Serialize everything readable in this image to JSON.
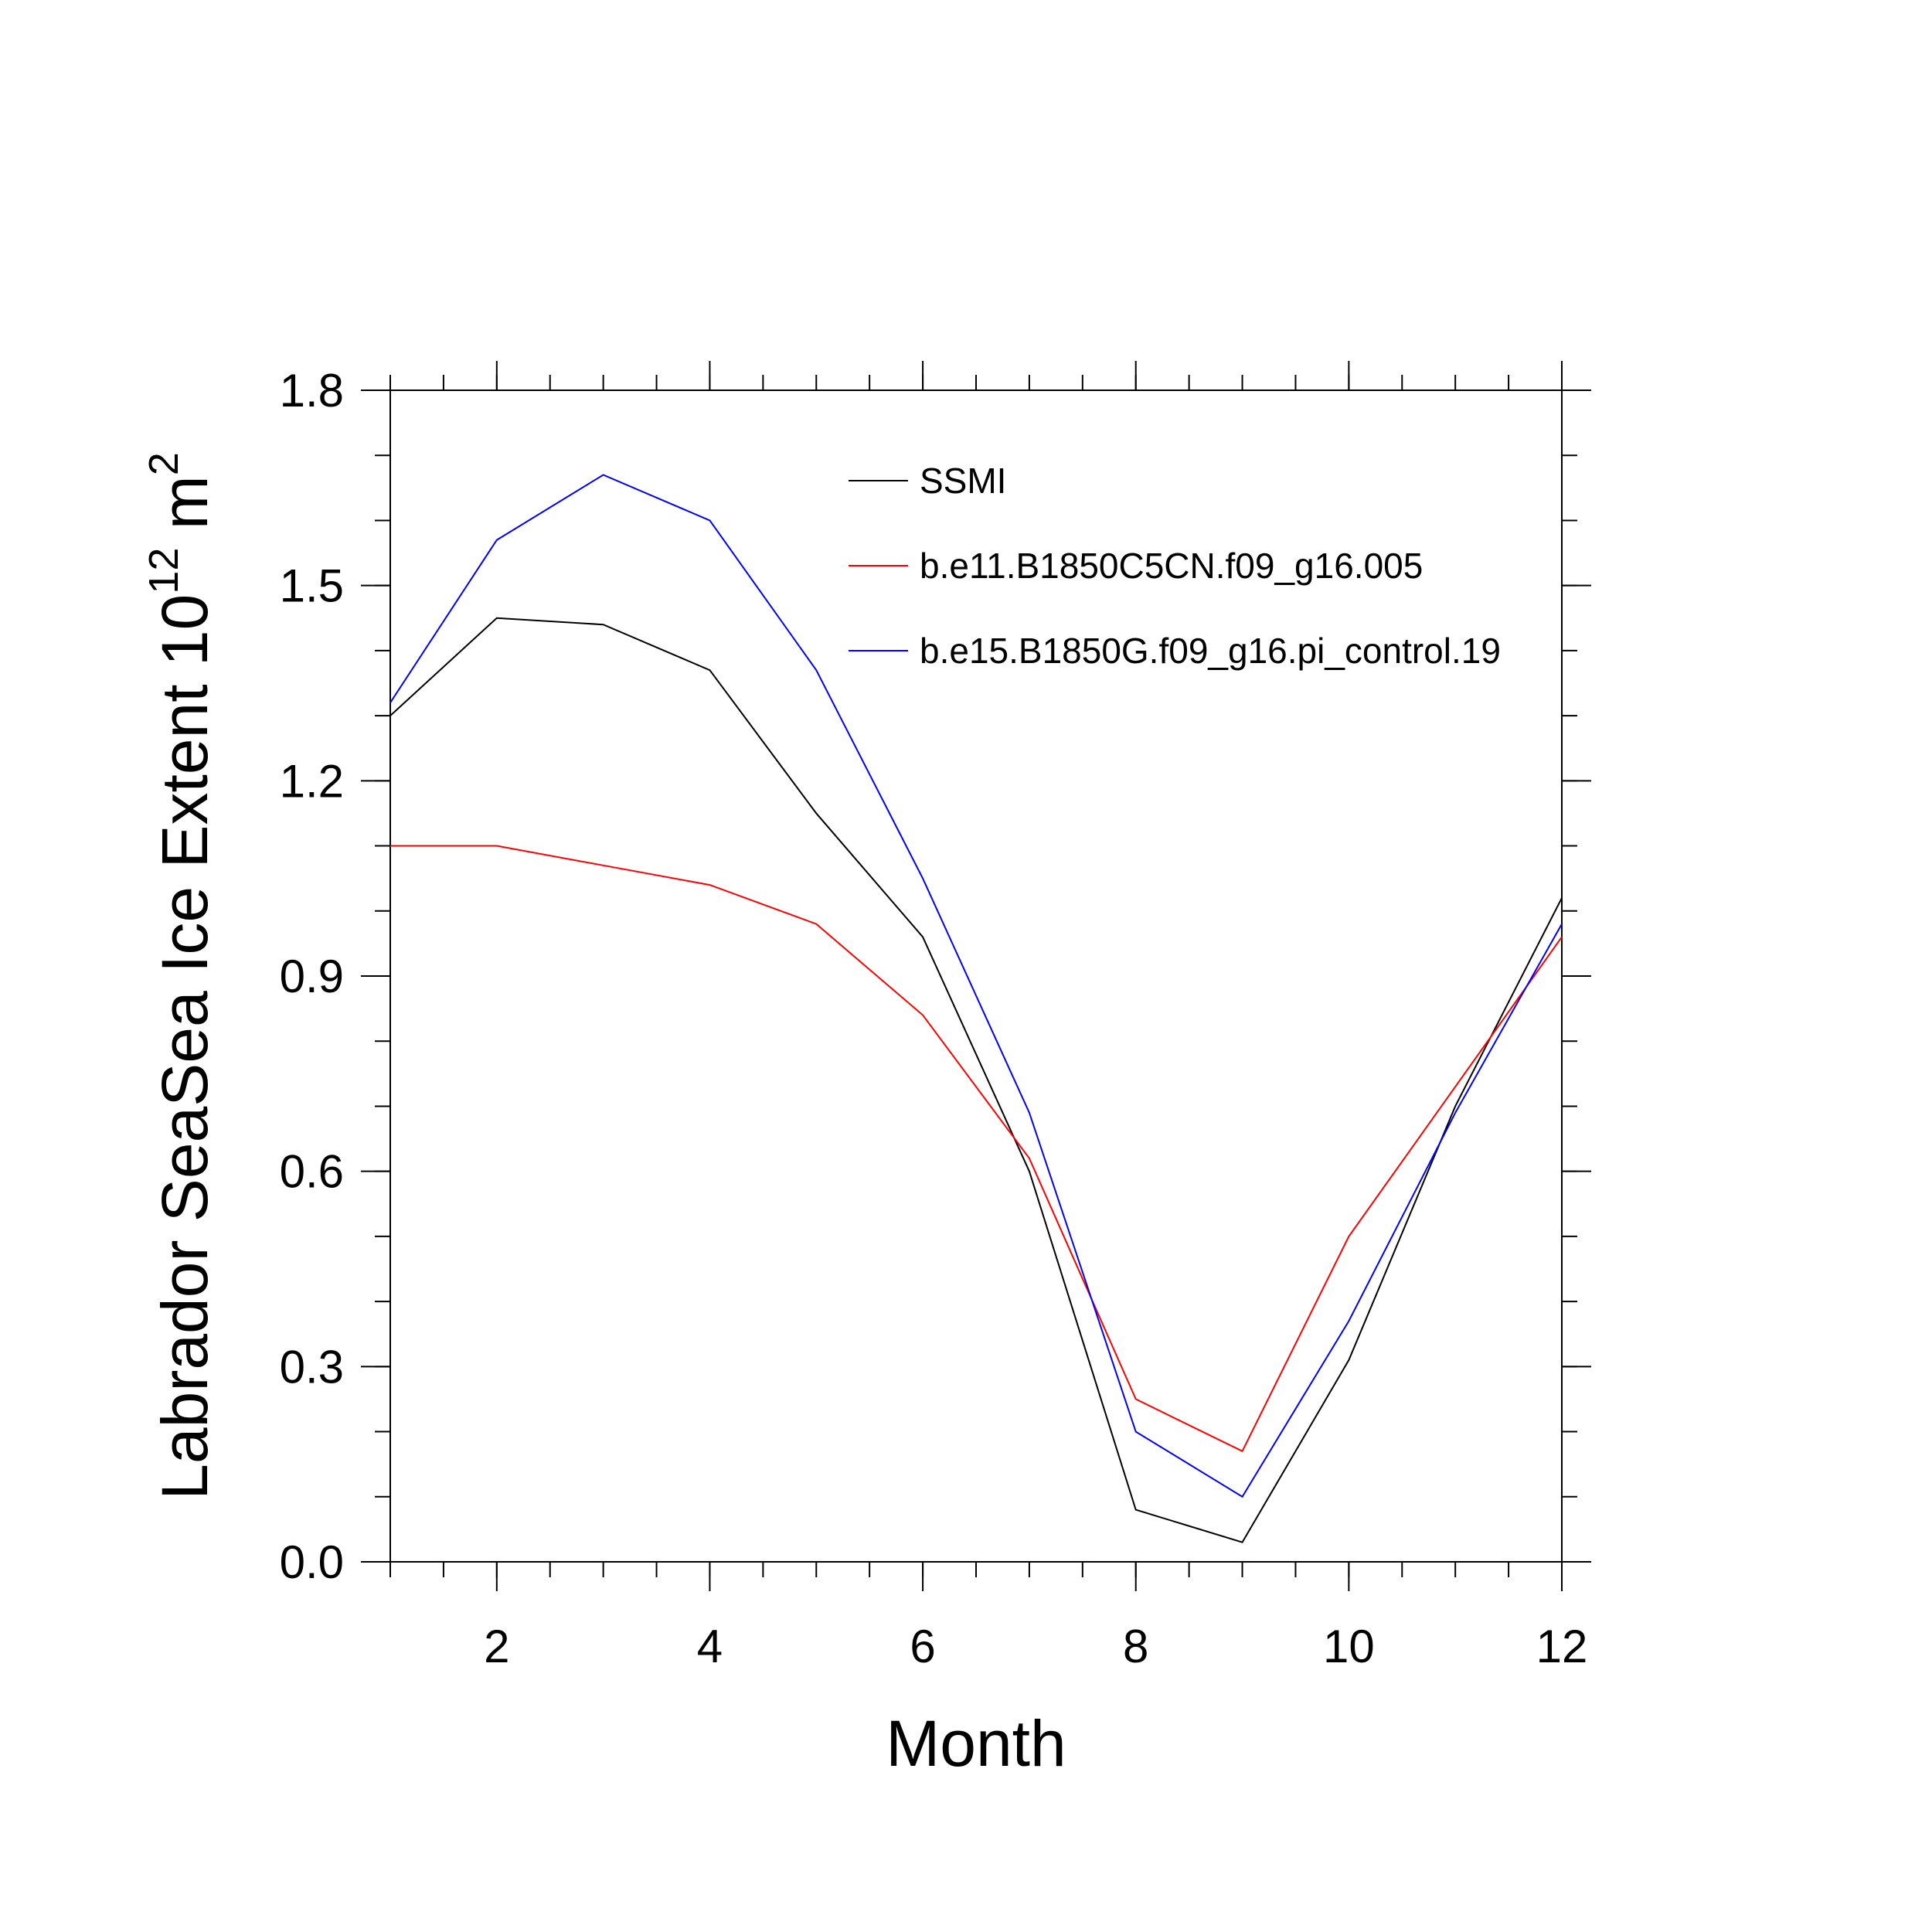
{
  "chart_data": {
    "type": "line",
    "xlabel": "Month",
    "ylabel": {
      "main": "Labrador SeaSea Ice Extent 10",
      "exp": "12",
      "unit": " m",
      "unit_exp": "2"
    },
    "xlim": [
      1,
      12
    ],
    "ylim": [
      0,
      1.8
    ],
    "x_ticks": [
      "2",
      "4",
      "6",
      "8",
      "10",
      "12"
    ],
    "x_tick_values": [
      2,
      4,
      6,
      8,
      10,
      12
    ],
    "y_ticks": [
      "0.0",
      "0.3",
      "0.6",
      "0.9",
      "1.2",
      "1.5",
      "1.8"
    ],
    "y_tick_values": [
      0,
      0.3,
      0.6,
      0.9,
      1.2,
      1.5,
      1.8
    ],
    "x": [
      1,
      2,
      3,
      4,
      5,
      6,
      7,
      8,
      9,
      10,
      11,
      12
    ],
    "grid": false,
    "legend_position": "top-right",
    "series": [
      {
        "name": "SSMI",
        "color": "#000000",
        "values": [
          1.3,
          1.45,
          1.44,
          1.37,
          1.15,
          0.96,
          0.6,
          0.08,
          0.03,
          0.31,
          0.7,
          1.02
        ]
      },
      {
        "name": "b.e11.B1850C5CN.f09_g16.005",
        "color": "#ff0000",
        "values": [
          1.1,
          1.1,
          1.07,
          1.04,
          0.98,
          0.84,
          0.62,
          0.25,
          0.17,
          0.5,
          0.73,
          0.96
        ]
      },
      {
        "name": "b.e15.B1850G.f09_g16.pi_control.19",
        "color": "#0000ff",
        "values": [
          1.32,
          1.57,
          1.67,
          1.6,
          1.37,
          1.05,
          0.69,
          0.2,
          0.1,
          0.37,
          0.69,
          0.98
        ]
      }
    ]
  }
}
